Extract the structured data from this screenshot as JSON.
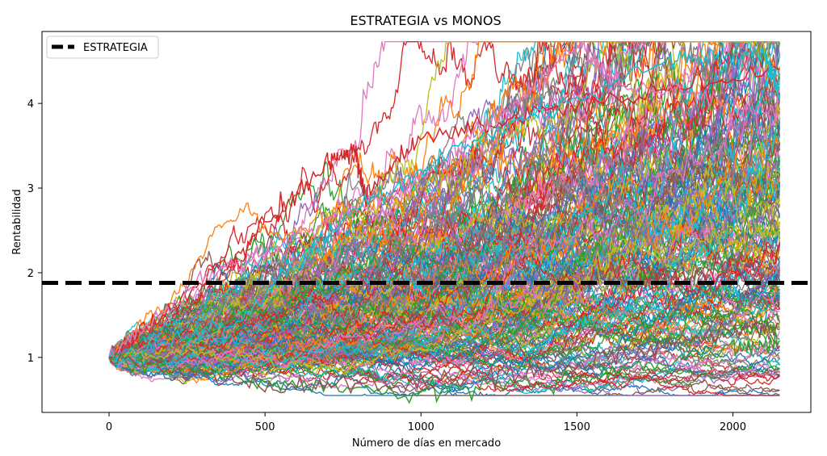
{
  "chart_data": {
    "type": "line",
    "title": "ESTRATEGIA vs MONOS",
    "xlabel": "Número de días en mercado",
    "ylabel": "Rentabilidad",
    "xlim": [
      -215,
      2250
    ],
    "ylim": [
      0.35,
      4.85
    ],
    "xticks": [
      0,
      500,
      1000,
      1500,
      2000
    ],
    "yticks": [
      1,
      2,
      3,
      4
    ],
    "xtick_labels": [
      "0",
      "500",
      "1000",
      "1500",
      "2000"
    ],
    "ytick_labels": [
      "1",
      "2",
      "3",
      "4"
    ],
    "grid": false,
    "legend_position": "top-left",
    "reference_line": {
      "name": "ESTRATEGIA",
      "y": 1.88,
      "color": "#000000",
      "style": "dashed"
    },
    "simulations": {
      "count": 250,
      "x_start": 0,
      "x_end": 2150,
      "y_start": 1.0,
      "final_min": 1.2,
      "final_max": 4.6,
      "series": [
        {
          "x": [
            0,
            400,
            700,
            790,
            820,
            1000,
            1400,
            2150
          ],
          "y": [
            1.0,
            2.2,
            3.3,
            3.45,
            2.9,
            3.6,
            3.9,
            4.4
          ]
        },
        {
          "x": [
            0,
            300,
            700,
            1000,
            1300,
            1500,
            1650,
            2150
          ],
          "y": [
            1.0,
            1.9,
            2.6,
            3.1,
            4.0,
            4.7,
            4.2,
            3.9
          ]
        },
        {
          "x": [
            0,
            400,
            800,
            1200,
            1800,
            2100,
            2150
          ],
          "y": [
            1.0,
            1.4,
            2.8,
            3.6,
            4.5,
            4.6,
            4.1
          ]
        },
        {
          "x": [
            0,
            500,
            1000,
            1500,
            2000,
            2150
          ],
          "y": [
            1.0,
            0.7,
            0.6,
            0.75,
            1.1,
            1.2
          ]
        },
        {
          "x": [
            0,
            500,
            1000,
            1500,
            2000,
            2150
          ],
          "y": [
            1.0,
            0.65,
            0.7,
            0.9,
            1.3,
            1.4
          ]
        }
      ]
    },
    "colors": [
      "#1f77b4",
      "#ff7f0e",
      "#2ca02c",
      "#d62728",
      "#9467bd",
      "#8c564b",
      "#e377c2",
      "#7f7f7f",
      "#bcbd22",
      "#17becf"
    ]
  }
}
